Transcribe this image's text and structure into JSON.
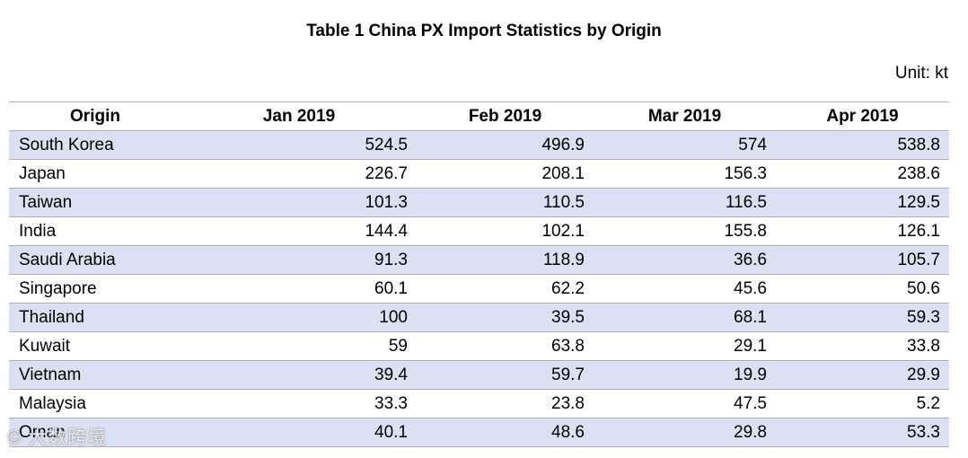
{
  "title": "Table 1 China PX Import Statistics by Origin",
  "unit": "Unit: kt",
  "table": {
    "headers": [
      "Origin",
      "Jan 2019",
      "Feb 2019",
      "Mar 2019",
      "Apr 2019"
    ],
    "rows": [
      [
        "South Korea",
        "524.5",
        "496.9",
        "574",
        "538.8"
      ],
      [
        "Japan",
        "226.7",
        "208.1",
        "156.3",
        "238.6"
      ],
      [
        "Taiwan",
        "101.3",
        "110.5",
        "116.5",
        "129.5"
      ],
      [
        "India",
        "144.4",
        "102.1",
        "155.8",
        "126.1"
      ],
      [
        "Saudi Arabia",
        "91.3",
        "118.9",
        "36.6",
        "105.7"
      ],
      [
        "Singapore",
        "60.1",
        "62.2",
        "45.6",
        "50.6"
      ],
      [
        "Thailand",
        "100",
        "39.5",
        "68.1",
        "59.3"
      ],
      [
        "Kuwait",
        "59",
        "63.8",
        "29.1",
        "33.8"
      ],
      [
        "Vietnam",
        "39.4",
        "59.7",
        "19.9",
        "29.9"
      ],
      [
        "Malaysia",
        "33.3",
        "23.8",
        "47.5",
        "5.2"
      ],
      [
        "Oman",
        "40.1",
        "48.6",
        "29.8",
        "53.3"
      ]
    ]
  },
  "watermark": "© 大数跨境"
}
